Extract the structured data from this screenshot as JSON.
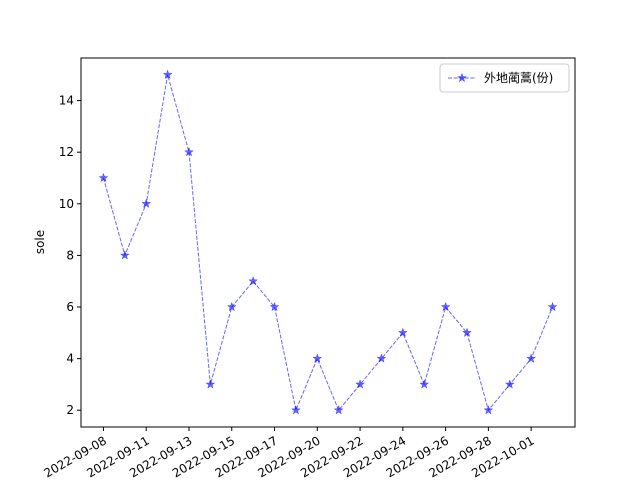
{
  "chart_data": {
    "type": "line",
    "ylabel": "sole",
    "categories": [
      "2022-09-08",
      null,
      "2022-09-11",
      null,
      "2022-09-13",
      null,
      "2022-09-15",
      null,
      "2022-09-17",
      null,
      "2022-09-20",
      null,
      "2022-09-22",
      null,
      "2022-09-24",
      null,
      "2022-09-26",
      null,
      "2022-09-28",
      null,
      "2022-10-01",
      null
    ],
    "series": [
      {
        "name": "外地蔺蒿(份)",
        "color": "#0000ff",
        "values": [
          11,
          8,
          10,
          15,
          12,
          3,
          6,
          7,
          6,
          2,
          4,
          2,
          3,
          4,
          5,
          3,
          6,
          5,
          2,
          3,
          4,
          6
        ]
      }
    ],
    "ylim": [
      1.35,
      15.65
    ],
    "yticks": [
      2,
      4,
      6,
      8,
      10,
      12,
      14
    ],
    "legend": "upper right",
    "grid": false
  }
}
